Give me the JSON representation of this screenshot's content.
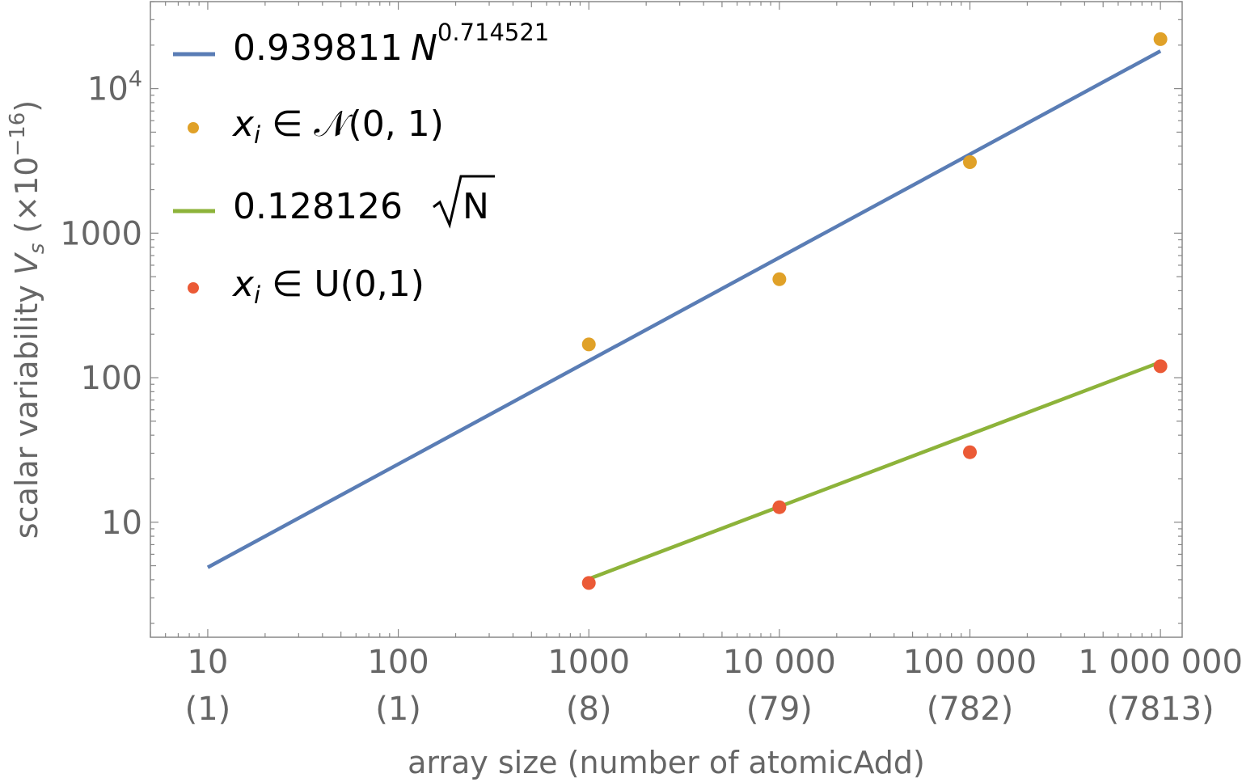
{
  "chart_data": {
    "type": "scatter",
    "xscale": "log",
    "yscale": "log",
    "xlim": [
      5,
      1300000
    ],
    "ylim": [
      1.6,
      40000
    ],
    "xlabel": "array size (number of atomicAdd)",
    "ylabel_main": "scalar variability ",
    "ylabel_var": "V",
    "ylabel_sub": "s",
    "ylabel_unit": " (×10",
    "ylabel_exp": "−16",
    "ylabel_close": ")",
    "x_ticks": [
      {
        "value": 10,
        "label": "10",
        "sublabel": "(1)"
      },
      {
        "value": 100,
        "label": "100",
        "sublabel": "(1)"
      },
      {
        "value": 1000,
        "label": "1000",
        "sublabel": "(8)"
      },
      {
        "value": 10000,
        "label": "10 000",
        "sublabel": "(79)"
      },
      {
        "value": 100000,
        "label": "100 000",
        "sublabel": "(782)"
      },
      {
        "value": 1000000,
        "label": "1 000 000",
        "sublabel": "(7813)"
      }
    ],
    "y_ticks": [
      {
        "value": 10,
        "label": "10"
      },
      {
        "value": 100,
        "label": "100"
      },
      {
        "value": 1000,
        "label": "1000"
      },
      {
        "value": 10000,
        "base": "10",
        "exp": "4"
      }
    ],
    "series": [
      {
        "kind": "line",
        "label_coef": "0.939811",
        "label_var": "N",
        "label_exp": "0.714521",
        "color": "#5a7db5",
        "coef": 0.939811,
        "exponent": 0.714521,
        "x_range": [
          10,
          1000000
        ]
      },
      {
        "kind": "points",
        "label_var": "x",
        "label_sub": "i",
        "label_rest": " ∈ 𝒩(0, 1)",
        "color": "#e0a128",
        "x": [
          1000,
          10000,
          100000,
          1000000
        ],
        "y": [
          170,
          480,
          3100,
          22000
        ]
      },
      {
        "kind": "line",
        "label_coef": "0.128126",
        "label_var": "N",
        "color": "#8db33a",
        "coef": 0.128126,
        "exponent": 0.5,
        "x_range": [
          1000,
          1000000
        ]
      },
      {
        "kind": "points",
        "label_var": "x",
        "label_sub": "i",
        "label_rest": " ∈ U(0,1)",
        "color": "#eb5a36",
        "x": [
          1000,
          10000,
          100000,
          1000000
        ],
        "y": [
          3.8,
          12.7,
          30.5,
          120
        ]
      }
    ],
    "legend_position": "top-left",
    "grid": false
  }
}
